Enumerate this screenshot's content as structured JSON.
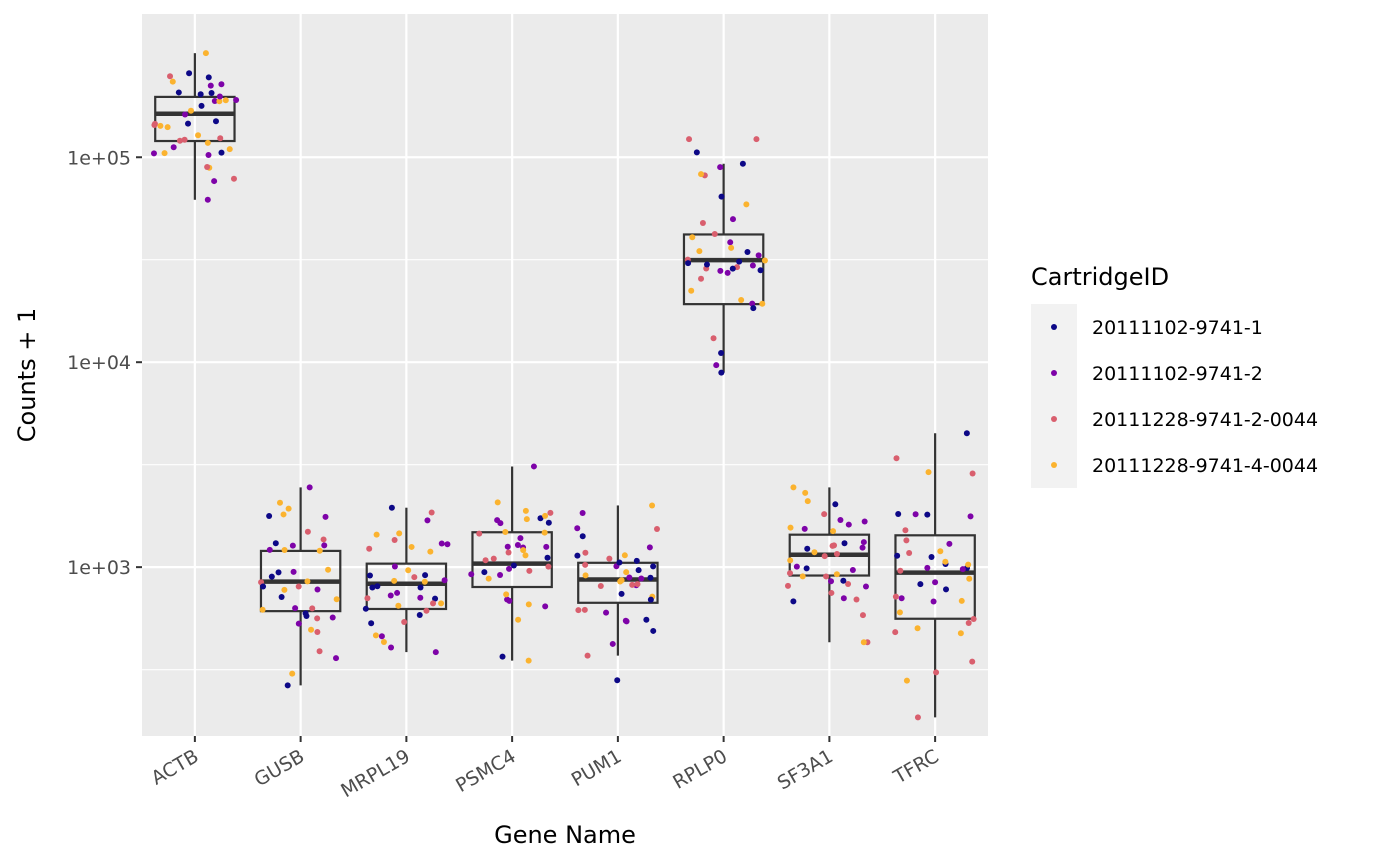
{
  "chart_data": {
    "type": "box",
    "title": "",
    "xlabel": "Gene Name",
    "ylabel": "Counts + 1",
    "y_scale": "log10",
    "ylim": [
      150,
      500000
    ],
    "y_ticks": [
      1000,
      10000,
      100000
    ],
    "y_tick_labels": [
      "1e+03",
      "1e+04",
      "1e+05"
    ],
    "y_minor_gridlines": [
      316,
      3162,
      31623
    ],
    "categories": [
      "ACTB",
      "GUSB",
      "MRPL19",
      "PSMC4",
      "PUM1",
      "RPLP0",
      "SF3A1",
      "TFRC"
    ],
    "boxes": [
      {
        "category": "ACTB",
        "whisker_low": 62000,
        "q1": 120000,
        "median": 163000,
        "q3": 197000,
        "whisker_high": 322000
      },
      {
        "category": "GUSB",
        "whisker_low": 265,
        "q1": 610,
        "median": 850,
        "q3": 1200,
        "whisker_high": 2450
      },
      {
        "category": "MRPL19",
        "whisker_low": 385,
        "q1": 625,
        "median": 830,
        "q3": 1040,
        "whisker_high": 1950
      },
      {
        "category": "PSMC4",
        "whisker_low": 350,
        "q1": 800,
        "median": 1040,
        "q3": 1480,
        "whisker_high": 3100
      },
      {
        "category": "PUM1",
        "whisker_low": 370,
        "q1": 670,
        "median": 870,
        "q3": 1050,
        "whisker_high": 2000
      },
      {
        "category": "RPLP0",
        "whisker_low": 8900,
        "q1": 19200,
        "median": 31500,
        "q3": 42000,
        "whisker_high": 93000
      },
      {
        "category": "SF3A1",
        "whisker_low": 430,
        "q1": 910,
        "median": 1150,
        "q3": 1440,
        "whisker_high": 2450
      },
      {
        "category": "TFRC",
        "whisker_low": 185,
        "q1": 560,
        "median": 940,
        "q3": 1430,
        "whisker_high": 4500
      }
    ],
    "points_per_category": 40,
    "legend": {
      "title": "CartridgeID",
      "position": "right",
      "entries": [
        {
          "label": "20111102-9741-1",
          "color": "#0d0887"
        },
        {
          "label": "20111102-9741-2",
          "color": "#7e03a8"
        },
        {
          "label": "20111228-9741-2-0044",
          "color": "#cc4778"
        },
        {
          "label": "20111228-9741-4-0044",
          "color": "#f89540"
        }
      ]
    },
    "colors": {
      "panel_background": "#ebebeb",
      "gridline": "#ffffff",
      "box_outline": "#333333",
      "series": [
        "#0d0887",
        "#7e03a8",
        "#d95f6e",
        "#fbb32f"
      ]
    },
    "grid": true
  }
}
